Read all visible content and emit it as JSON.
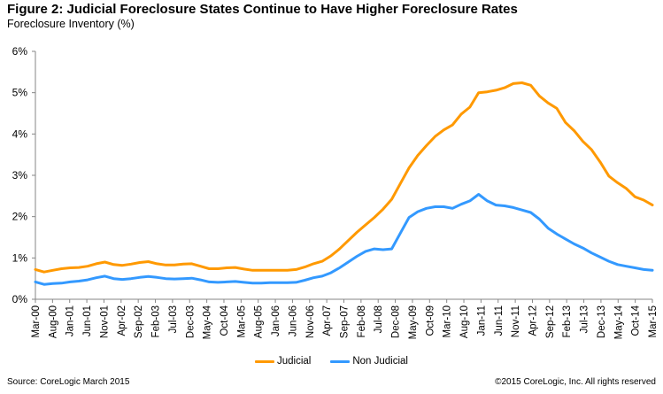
{
  "header": {
    "title": "Figure 2: Judicial Foreclosure States Continue to Have Higher Foreclosure Rates",
    "subtitle": "Foreclosure Inventory  (%)"
  },
  "footer": {
    "source": "Source: CoreLogic March 2015",
    "copyright": "©2015 CoreLogic, Inc.  All rights reserved"
  },
  "chart_data": {
    "type": "line",
    "title": "Figure 2: Judicial Foreclosure States Continue to Have Higher Foreclosure Rates",
    "ylabel": "Foreclosure Inventory (%)",
    "xlabel": "",
    "ylim": [
      0,
      6
    ],
    "yticks": [
      0,
      1,
      2,
      3,
      4,
      5,
      6
    ],
    "ytick_labels": [
      "0%",
      "1%",
      "2%",
      "3%",
      "4%",
      "5%",
      "6%"
    ],
    "grid": false,
    "legend_position": "bottom-center",
    "x_start": "Mar-00",
    "x_end": "Mar-15",
    "x_step_months": 3,
    "xtick_labels": [
      "Mar-00",
      "Aug-00",
      "Jan-01",
      "Jun-01",
      "Nov-01",
      "Apr-02",
      "Sep-02",
      "Feb-03",
      "Jul-03",
      "Dec-03",
      "May-04",
      "Oct-04",
      "Mar-05",
      "Aug-05",
      "Jan-06",
      "Jun-06",
      "Nov-06",
      "Apr-07",
      "Sep-07",
      "Feb-08",
      "Jul-08",
      "Dec-08",
      "May-09",
      "Oct-09",
      "Mar-10",
      "Aug-10",
      "Jan-11",
      "Jun-11",
      "Nov-11",
      "Apr-12",
      "Sep-12",
      "Feb-13",
      "Jul-13",
      "Dec-13",
      "May-14",
      "Oct-14",
      "Mar-15"
    ],
    "series": [
      {
        "name": "Judicial",
        "color": "#FF9900",
        "values": [
          0.72,
          0.66,
          0.7,
          0.74,
          0.76,
          0.77,
          0.8,
          0.86,
          0.9,
          0.84,
          0.82,
          0.85,
          0.89,
          0.91,
          0.86,
          0.83,
          0.83,
          0.85,
          0.86,
          0.8,
          0.74,
          0.74,
          0.76,
          0.77,
          0.73,
          0.7,
          0.7,
          0.7,
          0.7,
          0.7,
          0.72,
          0.78,
          0.86,
          0.92,
          1.05,
          1.22,
          1.42,
          1.62,
          1.8,
          1.98,
          2.18,
          2.42,
          2.8,
          3.18,
          3.48,
          3.72,
          3.94,
          4.1,
          4.22,
          4.48,
          4.65,
          5.0,
          5.02,
          5.06,
          5.12,
          5.22,
          5.24,
          5.18,
          4.92,
          4.75,
          4.62,
          4.28,
          4.08,
          3.82,
          3.62,
          3.32,
          2.98,
          2.82,
          2.68,
          2.48,
          2.4,
          2.28
        ]
      },
      {
        "name": "Non Judicial",
        "color": "#3399FF",
        "values": [
          0.42,
          0.36,
          0.38,
          0.39,
          0.42,
          0.44,
          0.47,
          0.52,
          0.56,
          0.5,
          0.48,
          0.5,
          0.53,
          0.55,
          0.53,
          0.5,
          0.49,
          0.5,
          0.51,
          0.47,
          0.42,
          0.41,
          0.42,
          0.43,
          0.41,
          0.39,
          0.39,
          0.4,
          0.4,
          0.4,
          0.41,
          0.46,
          0.52,
          0.56,
          0.64,
          0.76,
          0.9,
          1.04,
          1.16,
          1.22,
          1.2,
          1.22,
          1.6,
          1.98,
          2.12,
          2.2,
          2.24,
          2.24,
          2.2,
          2.3,
          2.38,
          2.54,
          2.38,
          2.28,
          2.26,
          2.22,
          2.16,
          2.1,
          1.94,
          1.72,
          1.58,
          1.46,
          1.34,
          1.24,
          1.12,
          1.02,
          0.92,
          0.84,
          0.8,
          0.76,
          0.72,
          0.7
        ]
      }
    ]
  }
}
